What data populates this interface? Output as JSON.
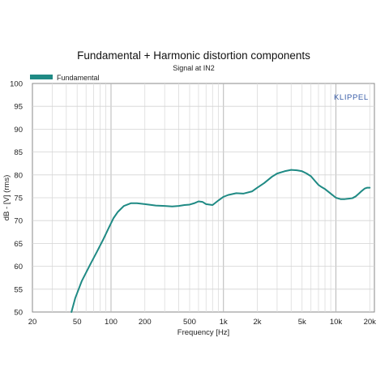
{
  "chart_data": {
    "type": "line",
    "title": "Fundamental + Harmonic distortion components",
    "subtitle": "Signal at IN2",
    "xlabel": "Frequency [Hz]",
    "ylabel": "dB - [V]  (rms)",
    "x_scale": "log",
    "xlim": [
      20,
      22000
    ],
    "ylim": [
      50,
      100
    ],
    "x_ticks": [
      20,
      50,
      100,
      200,
      500,
      1000,
      2000,
      5000,
      10000,
      20000
    ],
    "x_tick_labels": [
      "20",
      "50",
      "100",
      "200",
      "500",
      "1k",
      "2k",
      "5k",
      "10k",
      "20k"
    ],
    "y_ticks": [
      50,
      55,
      60,
      65,
      70,
      75,
      80,
      85,
      90,
      95,
      100
    ],
    "y_tick_labels": [
      "50",
      "55",
      "60",
      "65",
      "70",
      "75",
      "80",
      "85",
      "90",
      "95",
      "100"
    ],
    "grid": true,
    "legend_position": "top-left",
    "watermark": "KLIPPEL",
    "series": [
      {
        "name": "Fundamental",
        "color": "#1f8a84",
        "x": [
          44.5,
          48,
          55,
          65,
          75,
          85,
          95,
          105,
          115,
          130,
          150,
          170,
          200,
          250,
          300,
          350,
          400,
          450,
          500,
          550,
          600,
          650,
          700,
          800,
          900,
          1000,
          1100,
          1300,
          1500,
          1800,
          2000,
          2300,
          2700,
          3000,
          3500,
          4000,
          4500,
          5000,
          5500,
          6000,
          6500,
          7000,
          7500,
          8000,
          9000,
          10000,
          11000,
          12000,
          13000,
          14000,
          15000,
          16000,
          17000,
          18000,
          19000,
          20000
        ],
        "y": [
          50.0,
          53.0,
          56.8,
          60.3,
          63.2,
          65.8,
          68.3,
          70.5,
          71.9,
          73.2,
          73.8,
          73.8,
          73.6,
          73.3,
          73.2,
          73.1,
          73.2,
          73.4,
          73.5,
          73.8,
          74.2,
          74.1,
          73.6,
          73.4,
          74.4,
          75.2,
          75.6,
          76.0,
          75.9,
          76.4,
          77.2,
          78.2,
          79.6,
          80.3,
          80.8,
          81.1,
          81.0,
          80.8,
          80.3,
          79.7,
          78.7,
          77.8,
          77.3,
          76.9,
          75.9,
          75.0,
          74.7,
          74.7,
          74.8,
          74.9,
          75.3,
          75.9,
          76.5,
          77.0,
          77.2,
          77.2
        ]
      }
    ]
  }
}
